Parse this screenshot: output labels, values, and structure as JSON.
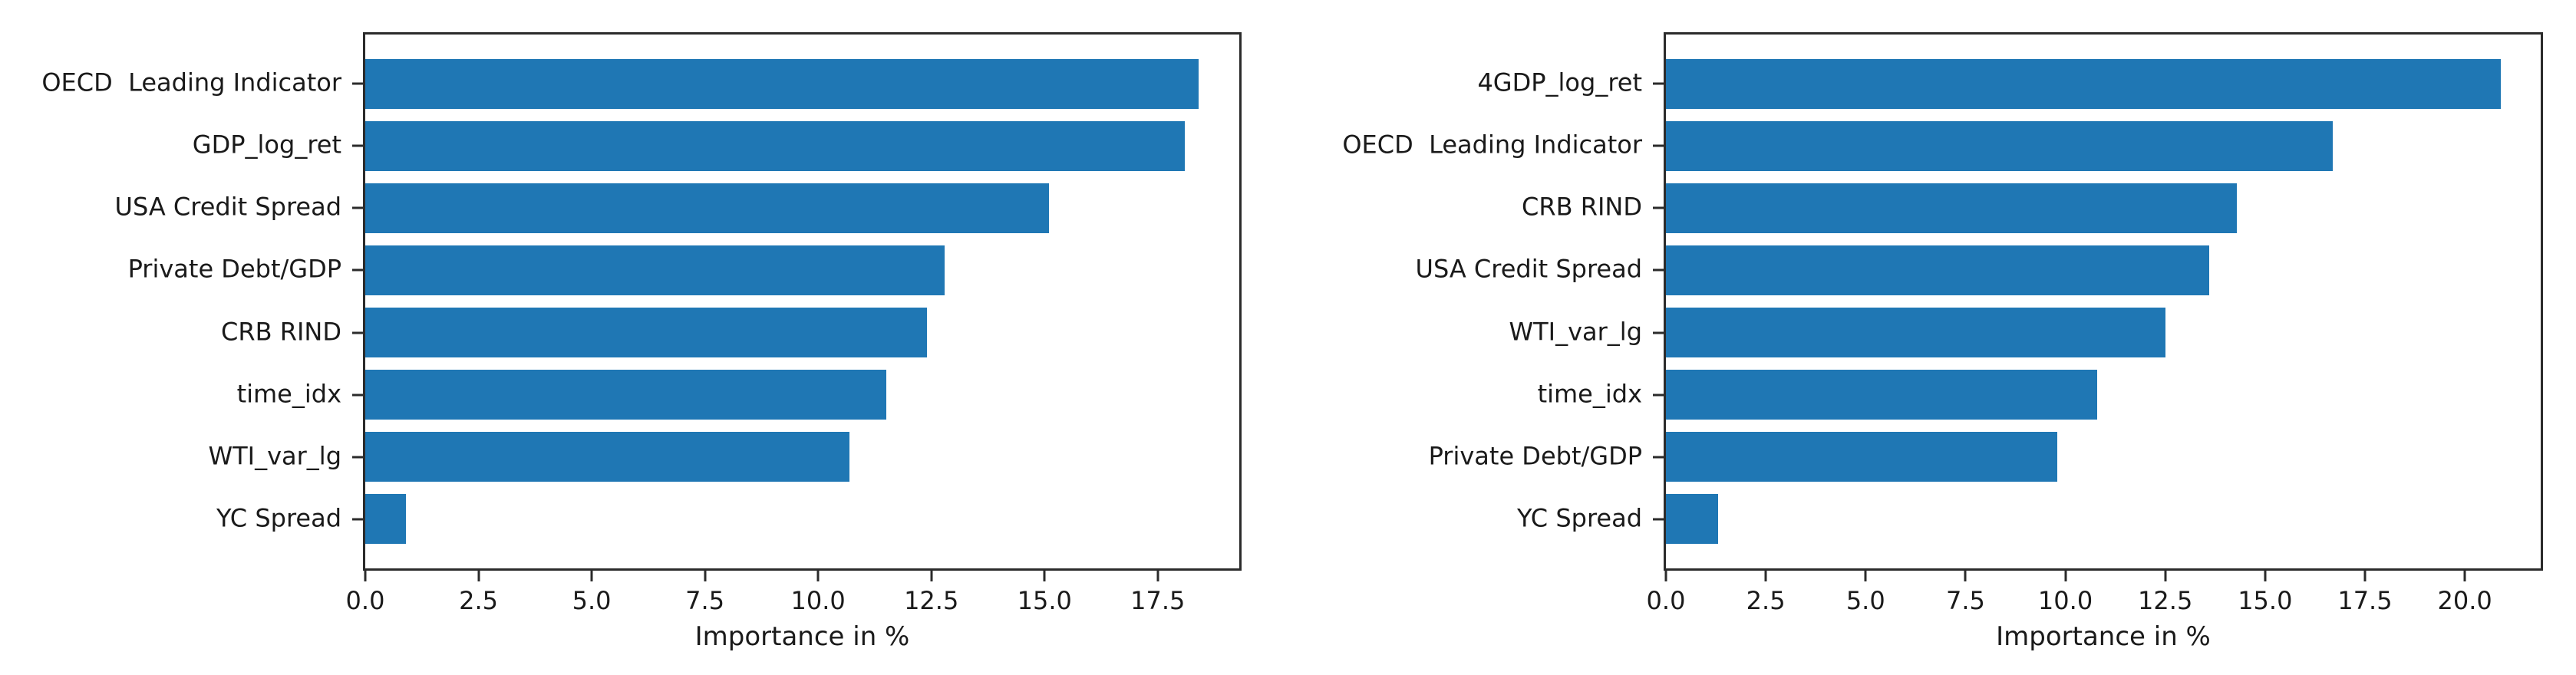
{
  "page": {
    "background_color": "#ffffff",
    "text_color": "#1a1a1a",
    "accent_color": "#1f77b4"
  },
  "chart_data": [
    {
      "type": "bar",
      "orientation": "horizontal",
      "title": "",
      "xlabel": "Importance in %",
      "ylabel": "",
      "categories": [
        "OECD  Leading Indicator",
        "GDP_log_ret",
        "USA Credit Spread",
        "Private Debt/GDP",
        "CRB RIND",
        "time_idx",
        "WTI_var_lg",
        "YC Spread"
      ],
      "values": [
        18.4,
        18.1,
        15.1,
        12.8,
        12.4,
        11.5,
        10.7,
        0.9
      ],
      "xticks": [
        0.0,
        2.5,
        5.0,
        7.5,
        10.0,
        12.5,
        15.0,
        17.5
      ],
      "xtick_labels": [
        "0.0",
        "2.5",
        "5.0",
        "7.5",
        "10.0",
        "12.5",
        "15.0",
        "17.5"
      ],
      "xlim": [
        0,
        19.3
      ],
      "bar_color": "#1f77b4",
      "bar_height_fraction": 0.8,
      "grid": false,
      "legend": null
    },
    {
      "type": "bar",
      "orientation": "horizontal",
      "title": "",
      "xlabel": "Importance in %",
      "ylabel": "",
      "categories": [
        "4GDP_log_ret",
        "OECD  Leading Indicator",
        "CRB RIND",
        "USA Credit Spread",
        "WTI_var_lg",
        "time_idx",
        "Private Debt/GDP",
        "YC Spread"
      ],
      "values": [
        20.9,
        16.7,
        14.3,
        13.6,
        12.5,
        10.8,
        9.8,
        1.3
      ],
      "xticks": [
        0.0,
        2.5,
        5.0,
        7.5,
        10.0,
        12.5,
        15.0,
        17.5,
        20.0
      ],
      "xtick_labels": [
        "0.0",
        "2.5",
        "5.0",
        "7.5",
        "10.0",
        "12.5",
        "15.0",
        "17.5",
        "20.0"
      ],
      "xlim": [
        0,
        21.9
      ],
      "bar_color": "#1f77b4",
      "bar_height_fraction": 0.8,
      "grid": false,
      "legend": null
    }
  ]
}
